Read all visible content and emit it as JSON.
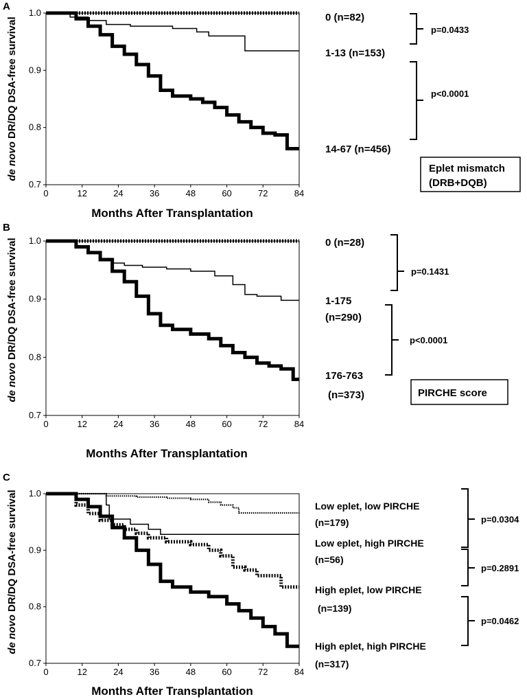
{
  "chart_data": [
    {
      "panel": "A",
      "type": "line",
      "subtype": "kaplan-meier",
      "title": "",
      "xlabel": "Months After Transplantation",
      "ylabel_italic": "de novo",
      "ylabel_rest": " DR/DQ DSA-free survival",
      "xlim": [
        0,
        84
      ],
      "ylim": [
        0.7,
        1.0
      ],
      "xticks": [
        "0",
        "12",
        "24",
        "36",
        "48",
        "60",
        "72",
        "84"
      ],
      "yticks": [
        "0.7",
        "0.8",
        "0.9",
        "1.0"
      ],
      "label_box": [
        "Eplet mismatch",
        "(DRB+DQB)"
      ],
      "series": [
        {
          "name": "0 (n=82)",
          "style": "hatched",
          "x": [
            0,
            84
          ],
          "y": [
            1.0,
            1.0
          ]
        },
        {
          "name": "1-13 (n=153)",
          "style": "thin",
          "x": [
            0,
            6,
            8,
            12,
            14,
            18,
            20,
            28,
            42,
            50,
            54,
            62,
            66,
            84
          ],
          "y": [
            1.0,
            1.0,
            0.993,
            0.993,
            0.987,
            0.987,
            0.98,
            0.977,
            0.973,
            0.967,
            0.96,
            0.96,
            0.934,
            0.934
          ]
        },
        {
          "name": "14-67 (n=456)",
          "style": "thick",
          "x": [
            0,
            6,
            10,
            14,
            18,
            22,
            26,
            30,
            34,
            38,
            42,
            48,
            52,
            56,
            60,
            64,
            68,
            72,
            76,
            80,
            84
          ],
          "y": [
            1.0,
            1.0,
            0.99,
            0.977,
            0.962,
            0.942,
            0.928,
            0.91,
            0.89,
            0.865,
            0.855,
            0.85,
            0.844,
            0.835,
            0.822,
            0.81,
            0.8,
            0.79,
            0.787,
            0.763,
            0.763
          ]
        }
      ],
      "group_labels": [
        "0 (n=82)",
        "1-13 (n=153)",
        "14-67 (n=456)"
      ],
      "pvalues": [
        "p=0.0433",
        "p<0.0001"
      ]
    },
    {
      "panel": "B",
      "type": "line",
      "subtype": "kaplan-meier",
      "title": "",
      "xlabel": "Months After Transplantation",
      "ylabel_italic": "de novo",
      "ylabel_rest": " DR/DQ DSA-free survival",
      "xlim": [
        0,
        84
      ],
      "ylim": [
        0.7,
        1.0
      ],
      "xticks": [
        "0",
        "12",
        "24",
        "36",
        "48",
        "60",
        "72",
        "84"
      ],
      "yticks": [
        "0.7",
        "0.8",
        "0.9",
        "1.0"
      ],
      "label_box": [
        "PIRCHE score"
      ],
      "series": [
        {
          "name": "0 (n=28)",
          "style": "hatched",
          "x": [
            0,
            84
          ],
          "y": [
            1.0,
            1.0
          ]
        },
        {
          "name": "1-175 (n=290)",
          "style": "thin",
          "x": [
            0,
            6,
            10,
            14,
            18,
            22,
            26,
            32,
            40,
            48,
            56,
            62,
            66,
            70,
            78,
            84
          ],
          "y": [
            1.0,
            1.0,
            0.99,
            0.982,
            0.97,
            0.962,
            0.958,
            0.955,
            0.952,
            0.948,
            0.94,
            0.925,
            0.908,
            0.905,
            0.898,
            0.898
          ]
        },
        {
          "name": "176-763 (n=373)",
          "style": "thick",
          "x": [
            0,
            6,
            10,
            14,
            18,
            22,
            26,
            30,
            34,
            38,
            42,
            48,
            54,
            58,
            62,
            66,
            70,
            74,
            78,
            82,
            84
          ],
          "y": [
            1.0,
            1.0,
            0.99,
            0.98,
            0.968,
            0.948,
            0.93,
            0.905,
            0.875,
            0.855,
            0.848,
            0.84,
            0.832,
            0.82,
            0.808,
            0.8,
            0.79,
            0.785,
            0.78,
            0.762,
            0.762
          ]
        }
      ],
      "group_labels": [
        "0 (n=28)",
        "1-175",
        "(n=290)",
        "176-763",
        "(n=373)"
      ],
      "pvalues": [
        "p=0.1431",
        "p<0.0001"
      ]
    },
    {
      "panel": "C",
      "type": "line",
      "subtype": "kaplan-meier",
      "title": "",
      "xlabel": "Months After Transplantation",
      "ylabel_italic": "de novo",
      "ylabel_rest": " DR/DQ DSA-free survival",
      "xlim": [
        0,
        84
      ],
      "ylim": [
        0.7,
        1.0
      ],
      "xticks": [
        "0",
        "12",
        "24",
        "36",
        "48",
        "60",
        "72",
        "84"
      ],
      "yticks": [
        "0.7",
        "0.8",
        "0.9",
        "1.0"
      ],
      "series": [
        {
          "name": "Low eplet, low PIRCHE (n=179)",
          "style": "dotted",
          "x": [
            0,
            10,
            20,
            30,
            40,
            48,
            54,
            58,
            62,
            64,
            70,
            84
          ],
          "y": [
            1.0,
            1.0,
            0.996,
            0.994,
            0.992,
            0.99,
            0.985,
            0.98,
            0.975,
            0.966,
            0.966,
            0.966
          ]
        },
        {
          "name": "Low eplet, high PIRCHE (n=56)",
          "style": "thin",
          "x": [
            0,
            19,
            20,
            21,
            28,
            34,
            38,
            84
          ],
          "y": [
            1.0,
            1.0,
            0.98,
            0.955,
            0.946,
            0.937,
            0.928,
            0.928
          ]
        },
        {
          "name": "High eplet, low PIRCHE (n=139)",
          "style": "hatched",
          "x": [
            0,
            6,
            10,
            14,
            18,
            22,
            26,
            30,
            34,
            40,
            48,
            54,
            58,
            62,
            66,
            70,
            74,
            78,
            84
          ],
          "y": [
            1.0,
            1.0,
            0.98,
            0.965,
            0.953,
            0.945,
            0.937,
            0.93,
            0.922,
            0.915,
            0.91,
            0.9,
            0.89,
            0.87,
            0.865,
            0.855,
            0.855,
            0.835,
            0.835
          ]
        },
        {
          "name": "High eplet, high PIRCHE (n=317)",
          "style": "thick",
          "x": [
            0,
            6,
            10,
            14,
            18,
            22,
            26,
            30,
            34,
            38,
            42,
            48,
            54,
            60,
            64,
            68,
            72,
            76,
            80,
            84
          ],
          "y": [
            1.0,
            1.0,
            0.99,
            0.977,
            0.96,
            0.94,
            0.922,
            0.9,
            0.875,
            0.845,
            0.835,
            0.826,
            0.818,
            0.805,
            0.793,
            0.78,
            0.765,
            0.752,
            0.73,
            0.73
          ]
        }
      ],
      "group_labels": [
        "Low eplet, low PIRCHE",
        "(n=179)",
        "Low eplet, high PIRCHE",
        "(n=56)",
        "High eplet, low PIRCHE",
        "(n=139)",
        "High eplet, high PIRCHE",
        "(n=317)"
      ],
      "pvalues": [
        "p=0.0304",
        "p=0.2891",
        "p=0.0462"
      ]
    }
  ]
}
